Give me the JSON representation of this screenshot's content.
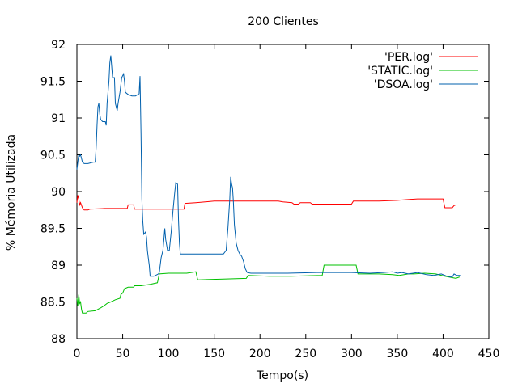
{
  "chart_data": {
    "type": "line",
    "title": "200 Clientes",
    "xlabel": "Tempo(s)",
    "ylabel": "% Mémoria Utilizada",
    "xlim": [
      0,
      450
    ],
    "ylim": [
      88,
      92
    ],
    "xticks": [
      0,
      50,
      100,
      150,
      200,
      250,
      300,
      350,
      400,
      450
    ],
    "yticks": [
      88,
      88.5,
      89,
      89.5,
      90,
      90.5,
      91,
      91.5,
      92
    ],
    "grid": false,
    "legend_position": "top-right",
    "series": [
      {
        "name": "'PER.log'",
        "color": "#ff0000",
        "points": [
          [
            0,
            89.85
          ],
          [
            1,
            89.95
          ],
          [
            2,
            89.9
          ],
          [
            3,
            89.82
          ],
          [
            4,
            89.85
          ],
          [
            6,
            89.78
          ],
          [
            8,
            89.75
          ],
          [
            12,
            89.75
          ],
          [
            14,
            89.76
          ],
          [
            30,
            89.77
          ],
          [
            50,
            89.77
          ],
          [
            55,
            89.77
          ],
          [
            56,
            89.82
          ],
          [
            62,
            89.82
          ],
          [
            63,
            89.76
          ],
          [
            80,
            89.76
          ],
          [
            100,
            89.76
          ],
          [
            117,
            89.76
          ],
          [
            118,
            89.84
          ],
          [
            130,
            89.85
          ],
          [
            150,
            89.87
          ],
          [
            180,
            89.87
          ],
          [
            200,
            89.87
          ],
          [
            220,
            89.87
          ],
          [
            225,
            89.86
          ],
          [
            235,
            89.85
          ],
          [
            237,
            89.83
          ],
          [
            242,
            89.83
          ],
          [
            244,
            89.85
          ],
          [
            255,
            89.85
          ],
          [
            257,
            89.83
          ],
          [
            300,
            89.83
          ],
          [
            302,
            89.87
          ],
          [
            330,
            89.87
          ],
          [
            350,
            89.88
          ],
          [
            360,
            89.89
          ],
          [
            372,
            89.9
          ],
          [
            400,
            89.9
          ],
          [
            402,
            89.78
          ],
          [
            410,
            89.78
          ],
          [
            412,
            89.81
          ],
          [
            414,
            89.82
          ]
        ]
      },
      {
        "name": "'STATIC.log'",
        "color": "#00c000",
        "points": [
          [
            0,
            88.55
          ],
          [
            1,
            88.45
          ],
          [
            2,
            88.6
          ],
          [
            3,
            88.48
          ],
          [
            4,
            88.5
          ],
          [
            5,
            88.4
          ],
          [
            6,
            88.35
          ],
          [
            10,
            88.35
          ],
          [
            12,
            88.37
          ],
          [
            20,
            88.38
          ],
          [
            26,
            88.42
          ],
          [
            30,
            88.45
          ],
          [
            33,
            88.48
          ],
          [
            37,
            88.5
          ],
          [
            42,
            88.53
          ],
          [
            47,
            88.55
          ],
          [
            48,
            88.6
          ],
          [
            50,
            88.62
          ],
          [
            52,
            88.68
          ],
          [
            56,
            88.7
          ],
          [
            62,
            88.7
          ],
          [
            63,
            88.72
          ],
          [
            70,
            88.72
          ],
          [
            80,
            88.74
          ],
          [
            88,
            88.76
          ],
          [
            90,
            88.88
          ],
          [
            100,
            88.89
          ],
          [
            120,
            88.89
          ],
          [
            130,
            88.91
          ],
          [
            132,
            88.8
          ],
          [
            160,
            88.81
          ],
          [
            185,
            88.82
          ],
          [
            187,
            88.86
          ],
          [
            210,
            88.85
          ],
          [
            232,
            88.85
          ],
          [
            234,
            88.85
          ],
          [
            268,
            88.86
          ],
          [
            270,
            89.0
          ],
          [
            305,
            89.0
          ],
          [
            307,
            88.88
          ],
          [
            330,
            88.88
          ],
          [
            345,
            88.87
          ],
          [
            352,
            88.86
          ],
          [
            362,
            88.88
          ],
          [
            368,
            88.88
          ],
          [
            380,
            88.89
          ],
          [
            392,
            88.88
          ],
          [
            402,
            88.85
          ],
          [
            410,
            88.83
          ],
          [
            414,
            88.82
          ],
          [
            418,
            88.84
          ]
        ]
      },
      {
        "name": "'DSOA.log'",
        "color": "#0060ad",
        "points": [
          [
            0,
            90.3
          ],
          [
            1,
            90.4
          ],
          [
            2,
            90.5
          ],
          [
            3,
            90.48
          ],
          [
            4,
            90.5
          ],
          [
            5,
            90.45
          ],
          [
            6,
            90.4
          ],
          [
            8,
            90.38
          ],
          [
            12,
            90.38
          ],
          [
            18,
            90.4
          ],
          [
            20,
            90.4
          ],
          [
            21,
            90.6
          ],
          [
            22,
            90.9
          ],
          [
            23,
            91.15
          ],
          [
            24,
            91.2
          ],
          [
            25,
            91.05
          ],
          [
            26,
            90.98
          ],
          [
            28,
            90.95
          ],
          [
            31,
            90.95
          ],
          [
            32,
            90.9
          ],
          [
            33,
            91.2
          ],
          [
            35,
            91.5
          ],
          [
            36,
            91.75
          ],
          [
            37,
            91.85
          ],
          [
            38,
            91.7
          ],
          [
            39,
            91.55
          ],
          [
            41,
            91.55
          ],
          [
            42,
            91.2
          ],
          [
            44,
            91.1
          ],
          [
            45,
            91.2
          ],
          [
            47,
            91.35
          ],
          [
            49,
            91.55
          ],
          [
            51,
            91.6
          ],
          [
            52,
            91.5
          ],
          [
            53,
            91.35
          ],
          [
            56,
            91.32
          ],
          [
            60,
            91.3
          ],
          [
            64,
            91.3
          ],
          [
            68,
            91.33
          ],
          [
            69,
            91.57
          ],
          [
            70,
            90.8
          ],
          [
            71,
            89.9
          ],
          [
            72,
            89.6
          ],
          [
            73,
            89.42
          ],
          [
            75,
            89.45
          ],
          [
            76,
            89.38
          ],
          [
            77,
            89.2
          ],
          [
            78,
            89.1
          ],
          [
            79,
            89.0
          ],
          [
            80,
            88.85
          ],
          [
            84,
            88.85
          ],
          [
            86,
            88.86
          ],
          [
            89,
            88.88
          ],
          [
            90,
            88.9
          ],
          [
            92,
            89.1
          ],
          [
            94,
            89.2
          ],
          [
            95,
            89.35
          ],
          [
            96,
            89.5
          ],
          [
            97,
            89.35
          ],
          [
            99,
            89.2
          ],
          [
            101,
            89.2
          ],
          [
            103,
            89.45
          ],
          [
            105,
            89.75
          ],
          [
            107,
            90.0
          ],
          [
            108,
            90.12
          ],
          [
            110,
            90.1
          ],
          [
            111,
            89.6
          ],
          [
            112,
            89.3
          ],
          [
            113,
            89.15
          ],
          [
            125,
            89.15
          ],
          [
            150,
            89.15
          ],
          [
            160,
            89.15
          ],
          [
            163,
            89.2
          ],
          [
            165,
            89.5
          ],
          [
            167,
            89.9
          ],
          [
            168,
            90.2
          ],
          [
            169,
            90.1
          ],
          [
            170,
            90.05
          ],
          [
            171,
            89.85
          ],
          [
            172,
            89.55
          ],
          [
            174,
            89.3
          ],
          [
            176,
            89.2
          ],
          [
            178,
            89.15
          ],
          [
            180,
            89.12
          ],
          [
            182,
            89.05
          ],
          [
            184,
            88.95
          ],
          [
            186,
            88.9
          ],
          [
            190,
            88.89
          ],
          [
            200,
            88.89
          ],
          [
            230,
            88.89
          ],
          [
            262,
            88.9
          ],
          [
            280,
            88.9
          ],
          [
            300,
            88.9
          ],
          [
            320,
            88.89
          ],
          [
            335,
            88.9
          ],
          [
            345,
            88.91
          ],
          [
            350,
            88.89
          ],
          [
            355,
            88.9
          ],
          [
            362,
            88.88
          ],
          [
            372,
            88.9
          ],
          [
            382,
            88.87
          ],
          [
            390,
            88.86
          ],
          [
            398,
            88.88
          ],
          [
            402,
            88.86
          ],
          [
            404,
            88.85
          ],
          [
            408,
            88.84
          ],
          [
            410,
            88.84
          ],
          [
            412,
            88.88
          ],
          [
            415,
            88.86
          ],
          [
            418,
            88.86
          ],
          [
            420,
            88.85
          ]
        ]
      }
    ]
  }
}
